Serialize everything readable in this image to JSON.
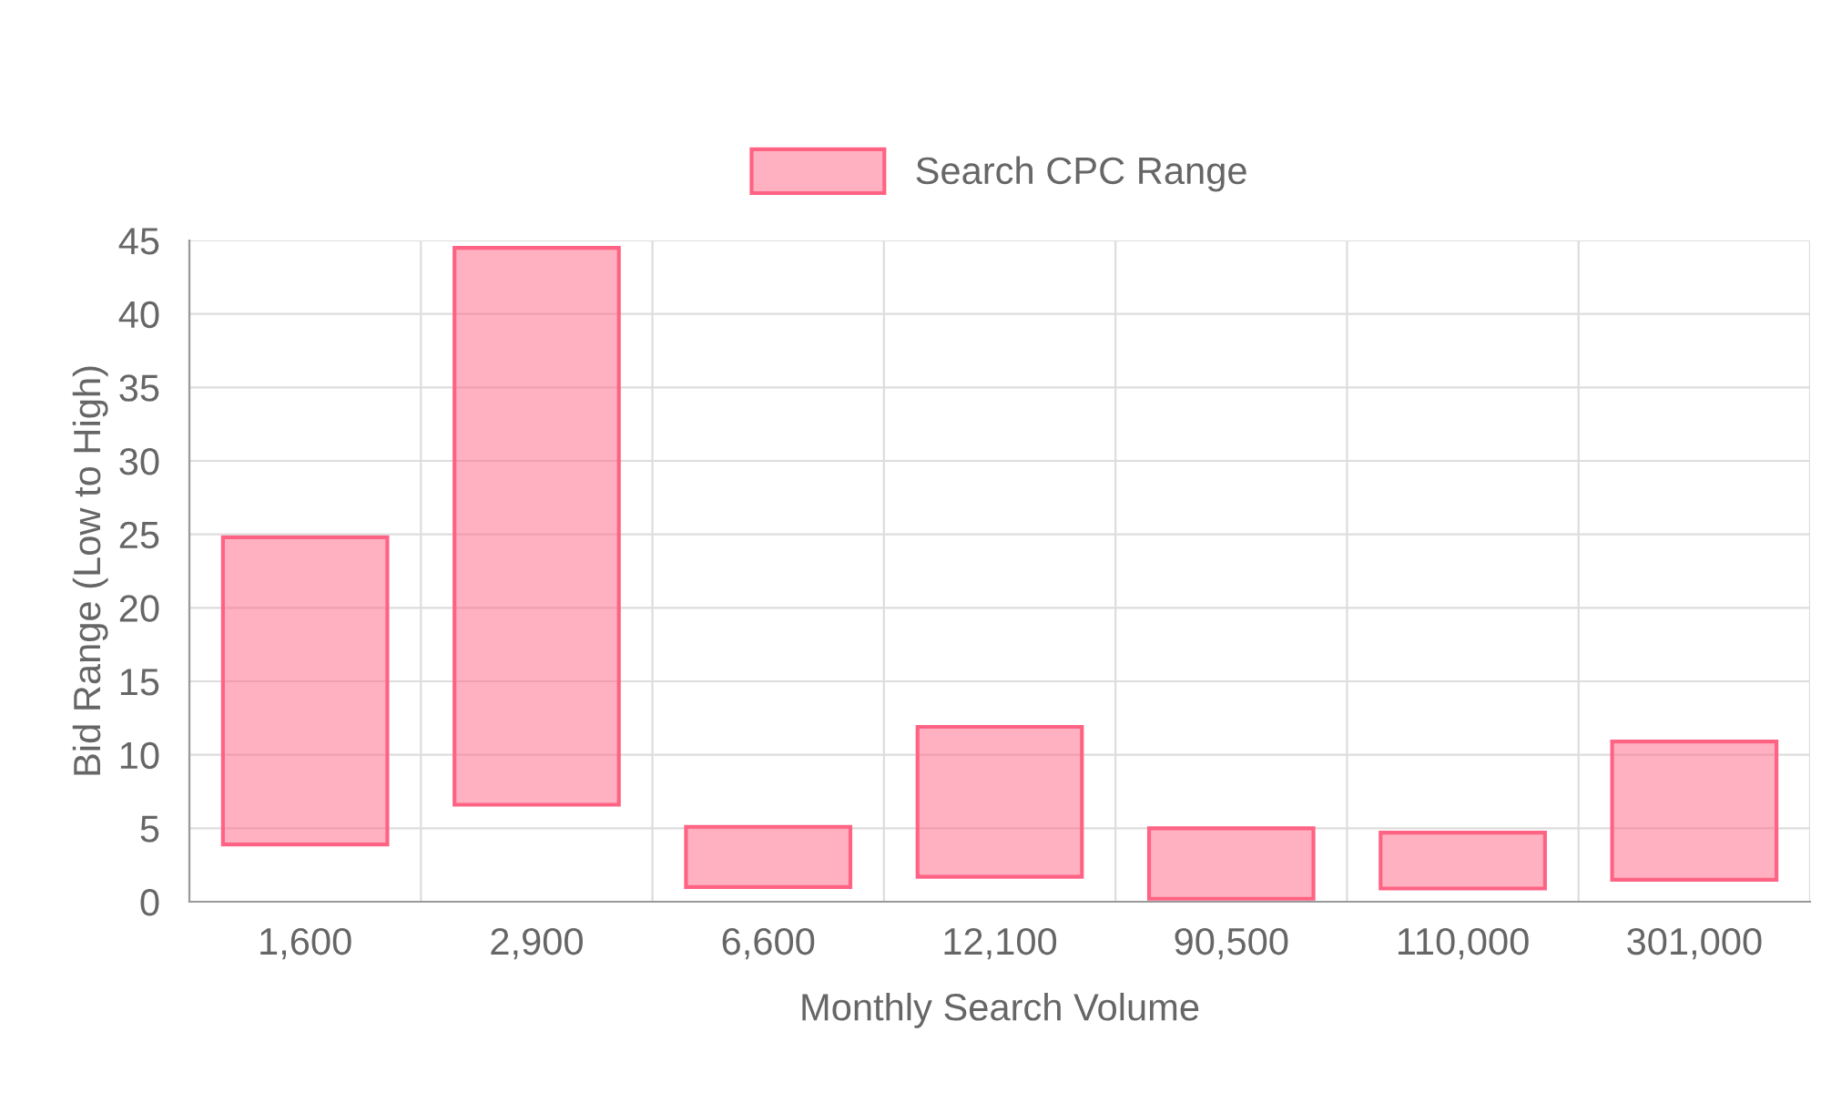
{
  "chart_data": {
    "type": "bar",
    "xlabel": "Monthly Search Volume",
    "ylabel": "Bid Range (Low to High)",
    "categories": [
      "1,600",
      "2,900",
      "6,600",
      "12,100",
      "90,500",
      "110,000",
      "301,000"
    ],
    "series": [
      {
        "name": "Search CPC Range",
        "color": "#ff6384",
        "base": [
          3.9,
          6.6,
          1.0,
          1.7,
          0.2,
          0.9,
          1.5
        ],
        "values": [
          20.9,
          37.9,
          4.1,
          10.2,
          4.8,
          3.8,
          9.4
        ]
      }
    ],
    "ylim": [
      0,
      45
    ],
    "yticks": [
      0,
      5,
      10,
      15,
      20,
      25,
      30,
      35,
      40,
      45
    ],
    "grid": true,
    "legend": "top"
  }
}
